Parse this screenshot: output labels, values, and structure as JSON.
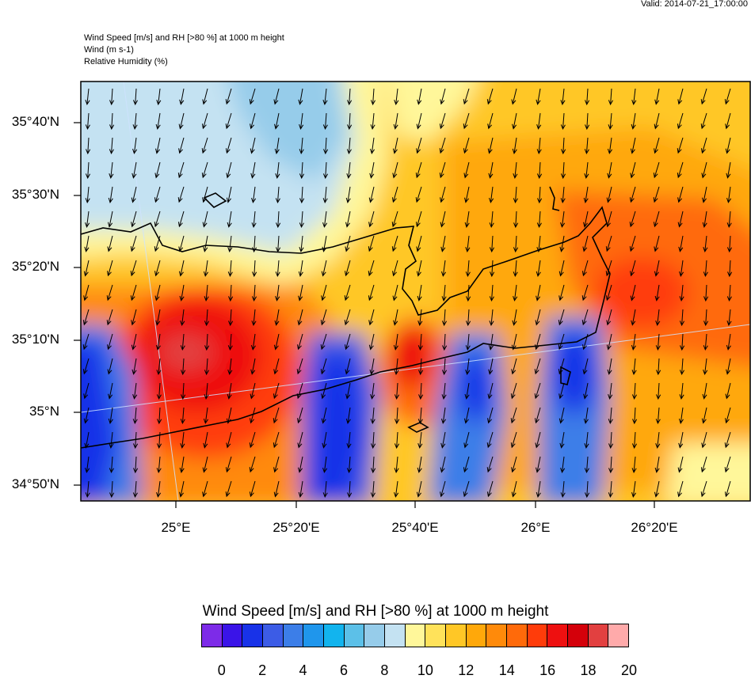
{
  "header": {
    "valid": "Valid: 2014-07-21_17:00:00",
    "line1": "Wind Speed [m/s] and RH [>80 %] at 1000 m height",
    "line2": "Wind   (m s-1)",
    "line3": "Relative Humidity   (%)"
  },
  "map": {
    "y_labels": [
      "35°40'N",
      "35°30'N",
      "35°20'N",
      "35°10'N",
      "35°N",
      "34°50'N"
    ],
    "x_labels": [
      "25°E",
      "25°20'E",
      "25°40'E",
      "26°E",
      "26°20'E"
    ]
  },
  "legend": {
    "title": "Wind Speed [m/s] and RH [>80 %] at 1000 m height",
    "ticks": [
      "0",
      "2",
      "4",
      "6",
      "8",
      "10",
      "12",
      "14",
      "16",
      "18",
      "20"
    ],
    "colors": [
      "#7d2be8",
      "#3a14e8",
      "#1832e8",
      "#3c5ce6",
      "#3c7ee8",
      "#1f96ec",
      "#12b4ee",
      "#5cc0e8",
      "#96ccea",
      "#c4e2f2",
      "#fff79a",
      "#ffe25a",
      "#ffc726",
      "#ffa80a",
      "#ff8a0a",
      "#ff6a0a",
      "#ff3c0a",
      "#ee1010",
      "#d4000a",
      "#e24040",
      "#ffaaaa"
    ]
  }
}
